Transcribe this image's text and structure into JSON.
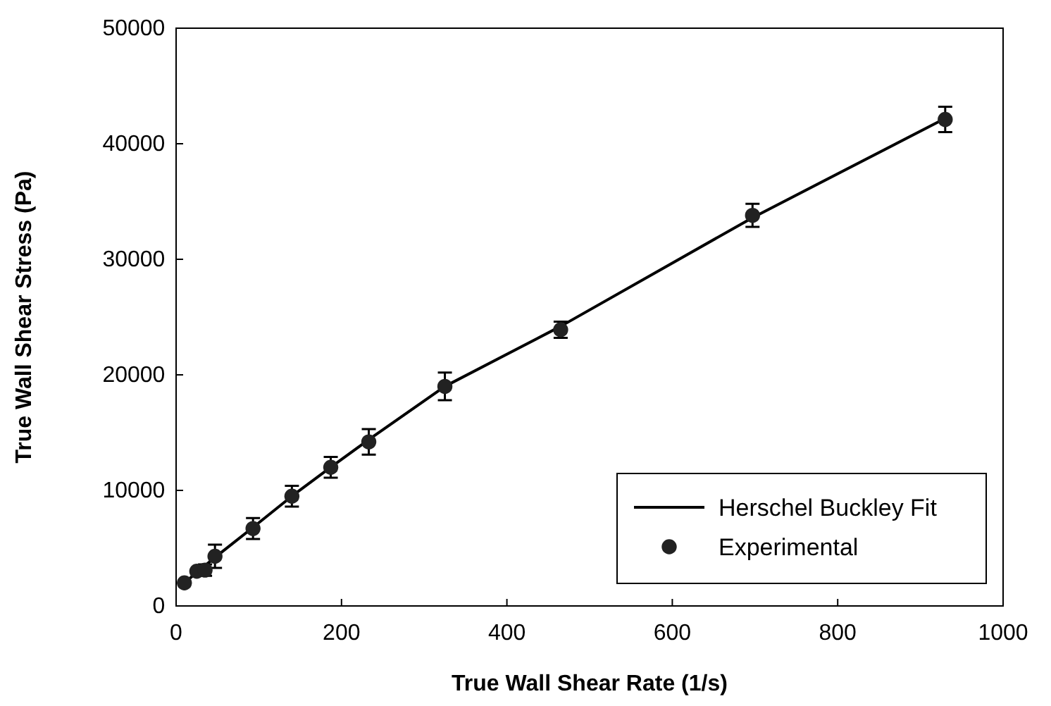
{
  "chart_data": {
    "type": "scatter",
    "xlabel": "True Wall Shear Rate (1/s)",
    "ylabel": "True Wall Shear Stress (Pa)",
    "xlim": [
      0,
      1000
    ],
    "xticks": [
      0,
      200,
      400,
      600,
      800,
      1000
    ],
    "ylim": [
      0,
      50000
    ],
    "yticks": [
      0,
      10000,
      20000,
      30000,
      40000,
      50000
    ],
    "legend": "bottom right",
    "grid": false,
    "series": [
      {
        "name": "Herschel Buckley Fit",
        "type": "line",
        "color": "#000000",
        "marker": "none",
        "x": [
          10,
          25,
          47,
          93,
          140,
          187,
          233,
          325,
          465,
          697,
          930
        ],
        "values": [
          2000,
          2900,
          4200,
          6800,
          9500,
          12000,
          14400,
          19000,
          24200,
          33600,
          42200
        ]
      },
      {
        "name": "Experimental",
        "color": "#222222",
        "marker": "circle",
        "x": [
          10,
          25,
          35,
          47,
          93,
          140,
          187,
          233,
          325,
          465,
          697,
          930
        ],
        "values": [
          2000,
          3000,
          3100,
          4300,
          6700,
          9500,
          12000,
          14200,
          19000,
          23900,
          33800,
          42100
        ],
        "errors": [
          null,
          null,
          500,
          1000,
          900,
          900,
          900,
          1100,
          1200,
          700,
          1000,
          1100
        ]
      }
    ]
  }
}
